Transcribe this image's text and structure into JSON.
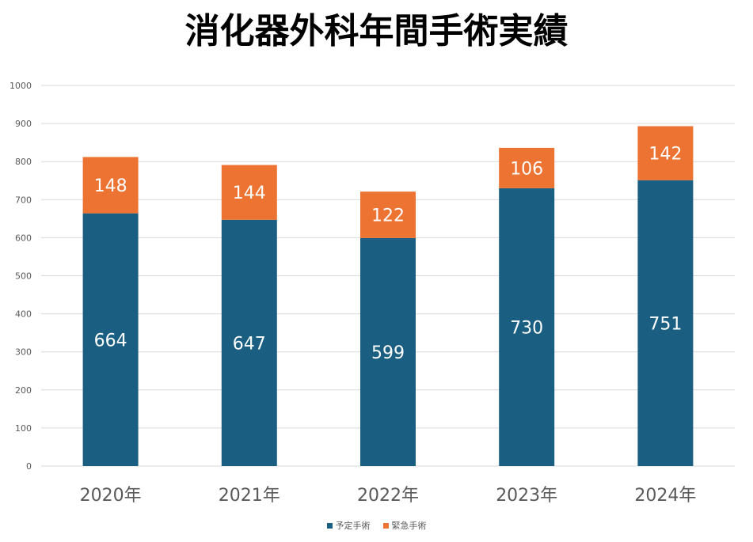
{
  "chart_data": {
    "type": "bar",
    "stacked": true,
    "title": "消化器外科年間手術実績",
    "categories": [
      "2020年",
      "2021年",
      "2022年",
      "2023年",
      "2024年"
    ],
    "series": [
      {
        "name": "予定手術",
        "values": [
          664,
          647,
          599,
          730,
          751
        ],
        "color": "#1a5f82"
      },
      {
        "name": "緊急手術",
        "values": [
          148,
          144,
          122,
          106,
          142
        ],
        "color": "#ec7331"
      }
    ],
    "ylim": [
      0,
      1000
    ],
    "yticks": [
      0,
      100,
      200,
      300,
      400,
      500,
      600,
      700,
      800,
      900,
      1000
    ],
    "grid": true,
    "legend_position": "bottom",
    "xlabel": "",
    "ylabel": ""
  }
}
